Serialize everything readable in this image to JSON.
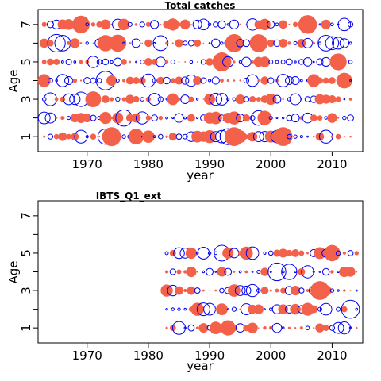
{
  "colors": {
    "positive": "#F4614A",
    "negative": "#0000EE",
    "frame": "#000000"
  },
  "chart_data": [
    {
      "type": "scatter",
      "title": "Total catches",
      "xlabel": "year",
      "ylabel": "Age",
      "xlim": [
        1962,
        2015
      ],
      "ylim": [
        0.2,
        7.8
      ],
      "xticks": [
        1970,
        1980,
        1990,
        2000,
        2010
      ],
      "yticks": [
        1,
        3,
        5,
        7
      ],
      "yticks_minor": [
        2,
        4,
        6
      ],
      "years": [
        1963,
        2013
      ],
      "ages": [
        1,
        2,
        3,
        4,
        5,
        6,
        7
      ],
      "pattern_seed": 7
    },
    {
      "type": "scatter",
      "title": "IBTS_Q1_ext",
      "xlabel": "year",
      "ylabel": "Age",
      "xlim": [
        1962,
        2015
      ],
      "ylim": [
        0.2,
        7.8
      ],
      "xticks": [
        1970,
        1980,
        1990,
        2000,
        2010
      ],
      "yticks": [
        1,
        3,
        5,
        7
      ],
      "yticks_minor": [
        2,
        4,
        6
      ],
      "years": [
        1983,
        2014
      ],
      "ages": [
        1,
        2,
        3,
        4,
        5
      ],
      "pattern_seed": 13
    }
  ]
}
